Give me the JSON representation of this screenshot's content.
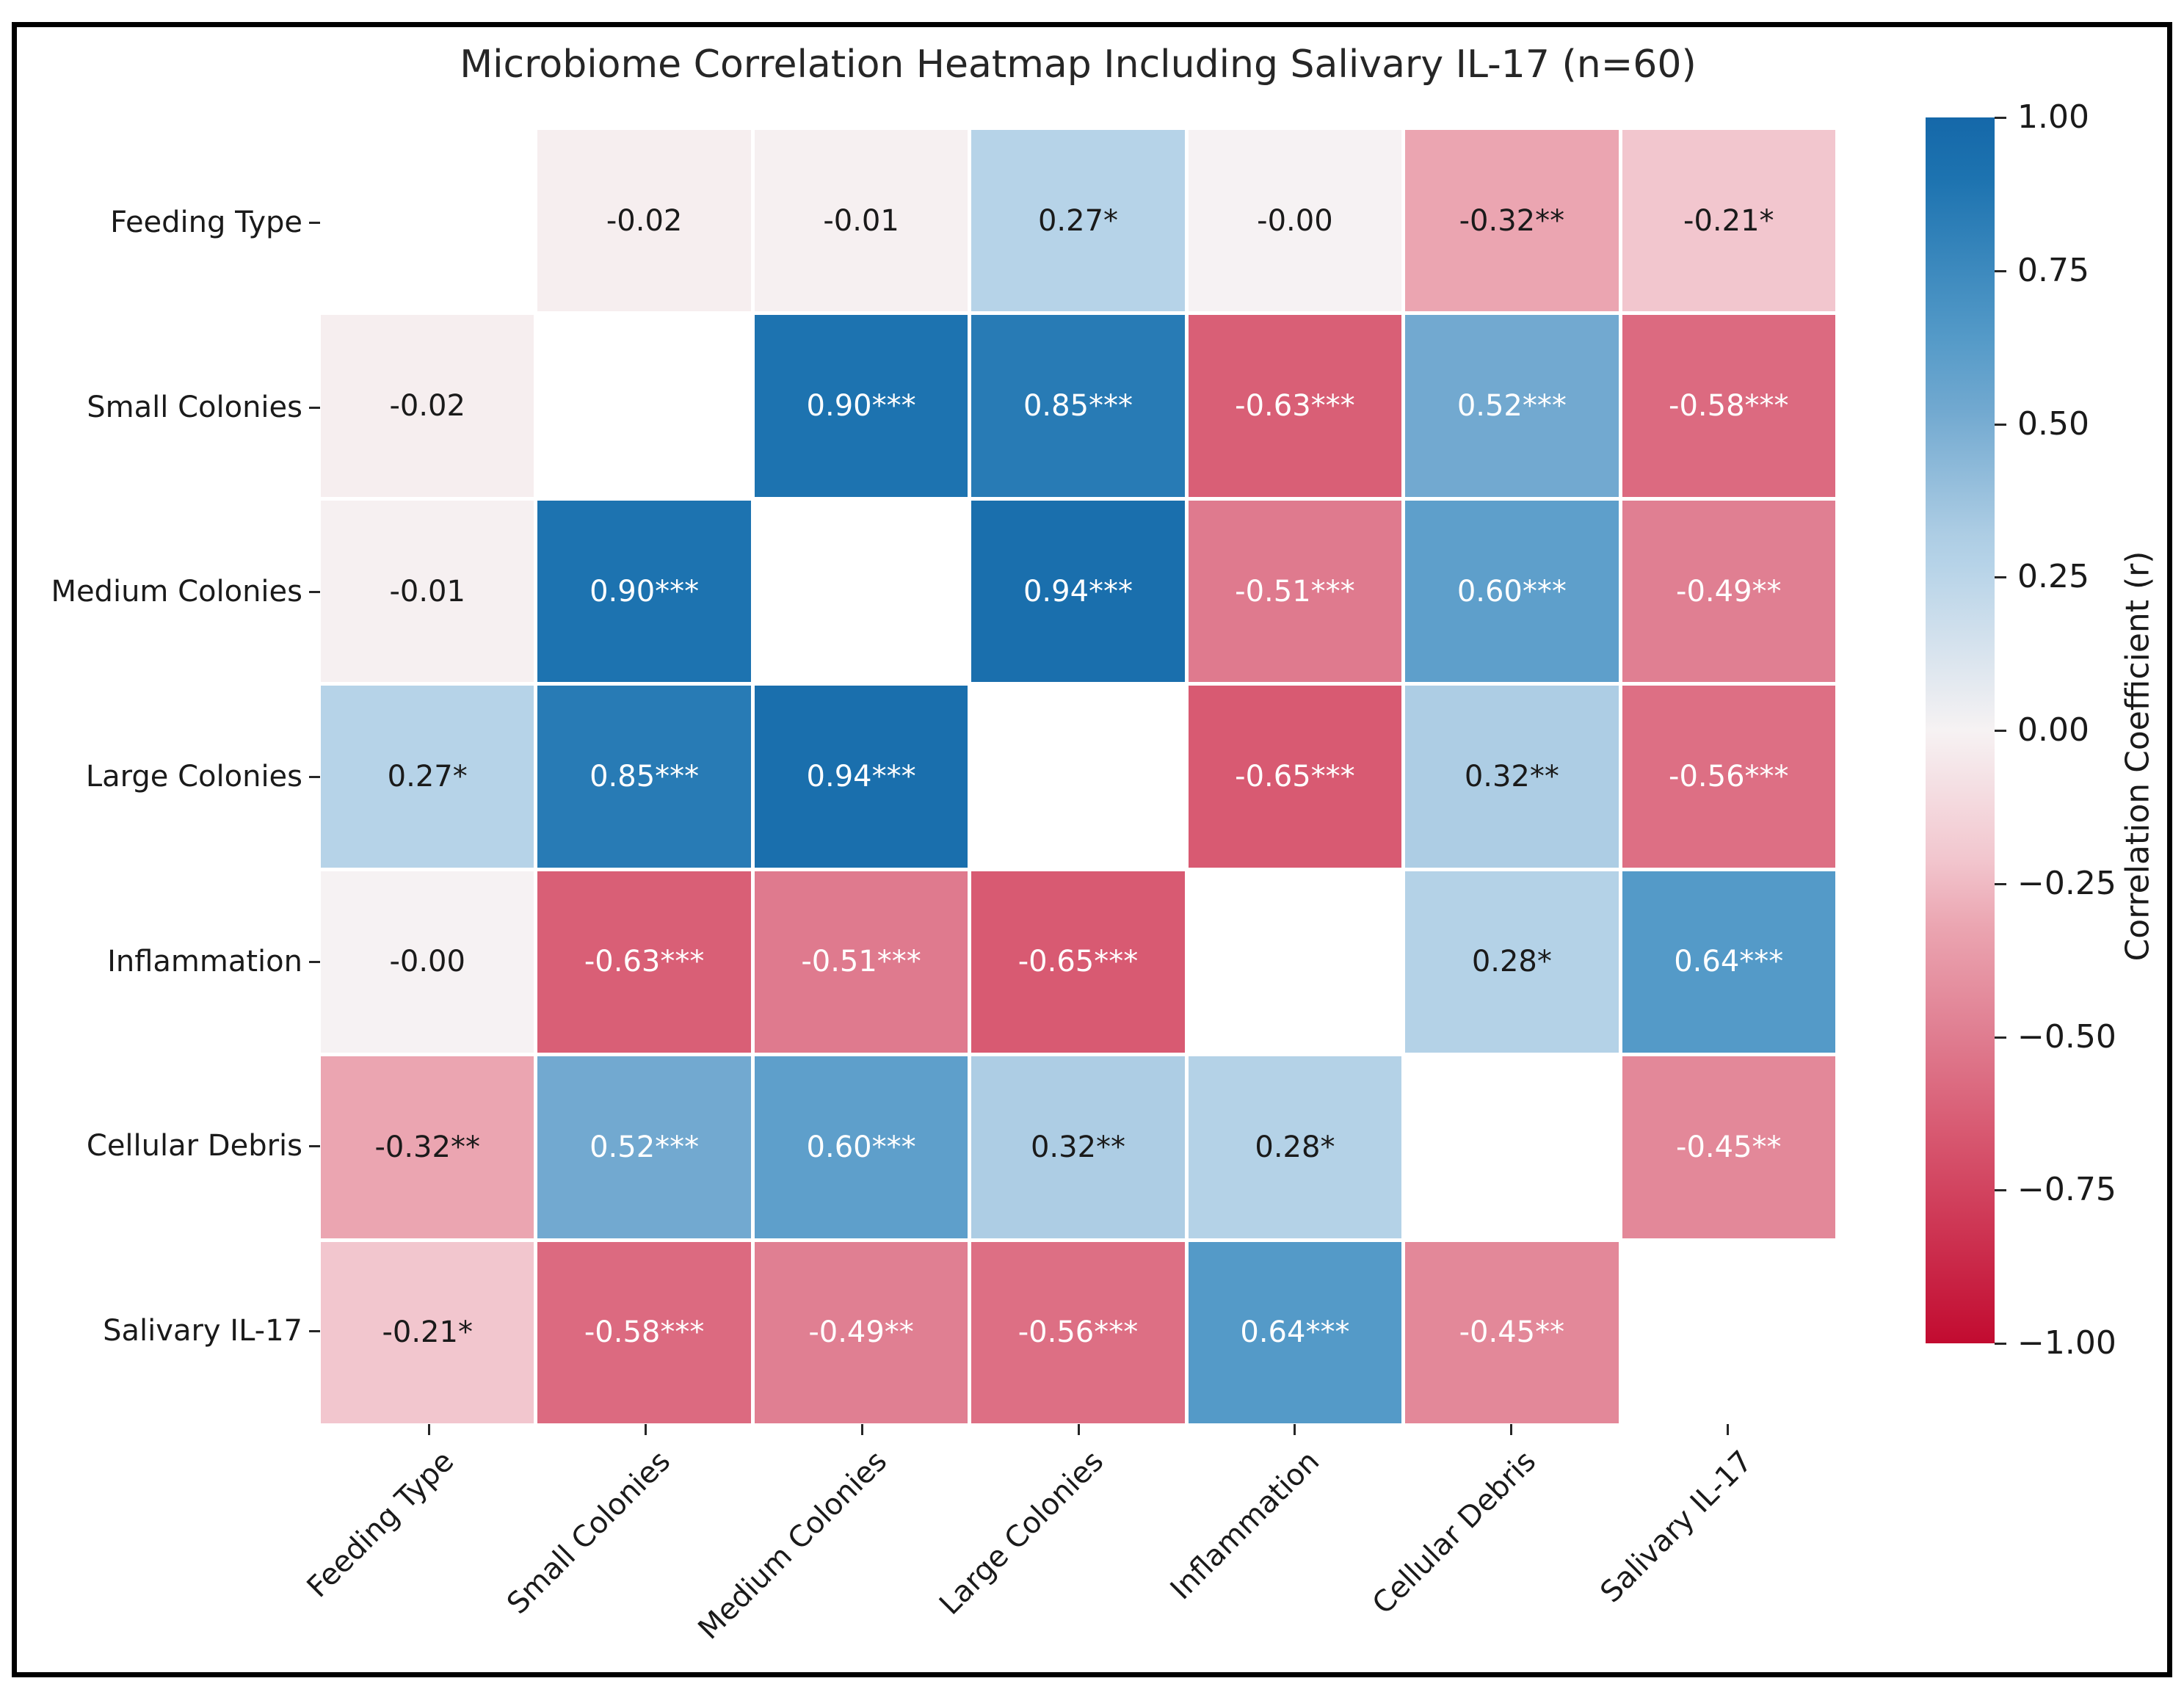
{
  "chart_data": {
    "type": "heatmap",
    "title": "Microbiome Correlation Heatmap Including Salivary IL-17 (n=60)",
    "categories": [
      "Feeding Type",
      "Small Colonies",
      "Medium Colonies",
      "Large Colonies",
      "Inflammation",
      "Cellular Debris",
      "Salivary IL-17"
    ],
    "matrix": [
      [
        null,
        -0.02,
        -0.01,
        0.27,
        -0.0,
        -0.32,
        -0.21
      ],
      [
        -0.02,
        null,
        0.9,
        0.85,
        -0.63,
        0.52,
        -0.58
      ],
      [
        -0.01,
        0.9,
        null,
        0.94,
        -0.51,
        0.6,
        -0.49
      ],
      [
        0.27,
        0.85,
        0.94,
        null,
        -0.65,
        0.32,
        -0.56
      ],
      [
        -0.0,
        -0.63,
        -0.51,
        -0.65,
        null,
        0.28,
        0.64
      ],
      [
        -0.32,
        0.52,
        0.6,
        0.32,
        0.28,
        null,
        -0.45
      ],
      [
        -0.21,
        -0.58,
        -0.49,
        -0.56,
        0.64,
        -0.45,
        null
      ]
    ],
    "annotations": [
      [
        "",
        "-0.02",
        "-0.01",
        "0.27*",
        "-0.00",
        "-0.32**",
        "-0.21*"
      ],
      [
        "-0.02",
        "",
        "0.90***",
        "0.85***",
        "-0.63***",
        "0.52***",
        "-0.58***"
      ],
      [
        "-0.01",
        "0.90***",
        "",
        "0.94***",
        "-0.51***",
        "0.60***",
        "-0.49**"
      ],
      [
        "0.27*",
        "0.85***",
        "0.94***",
        "",
        "-0.65***",
        "0.32**",
        "-0.56***"
      ],
      [
        "-0.00",
        "-0.63***",
        "-0.51***",
        "-0.65***",
        "",
        "0.28*",
        "0.64***"
      ],
      [
        "-0.32**",
        "0.52***",
        "0.60***",
        "0.32**",
        "0.28*",
        "",
        "-0.45**"
      ],
      [
        "-0.21*",
        "-0.58***",
        "-0.49**",
        "-0.56***",
        "0.64***",
        "-0.45**",
        ""
      ]
    ],
    "masked": "diagonal",
    "grid": false,
    "colorbar": {
      "label": "Correlation Coefficient (r)",
      "vmin": -1.0,
      "vmax": 1.0,
      "tick_values": [
        1.0,
        0.75,
        0.5,
        0.25,
        0.0,
        -0.25,
        -0.5,
        -0.75,
        -1.0
      ],
      "tick_labels": [
        "1.00",
        "0.75",
        "0.50",
        "0.25",
        "0.00",
        "−0.25",
        "−0.50",
        "−0.75",
        "−1.00"
      ],
      "position": "right"
    },
    "colormap_anchors": [
      [
        -1.0,
        "#c20b30"
      ],
      [
        -0.65,
        "#d85a72"
      ],
      [
        -0.49,
        "#e07f92"
      ],
      [
        -0.32,
        "#eba5b1"
      ],
      [
        -0.21,
        "#f2c6ce"
      ],
      [
        0.0,
        "#f6f2f3"
      ],
      [
        0.27,
        "#b6d3e8"
      ],
      [
        0.32,
        "#adcde4"
      ],
      [
        0.52,
        "#72a9d0"
      ],
      [
        0.64,
        "#549ac8"
      ],
      [
        0.9,
        "#1d73b0"
      ],
      [
        1.0,
        "#1568a9"
      ]
    ],
    "annotation_text_colors": {
      "light": "#ffffff",
      "dark": "#1a1a1a",
      "light_threshold": 0.44
    }
  }
}
